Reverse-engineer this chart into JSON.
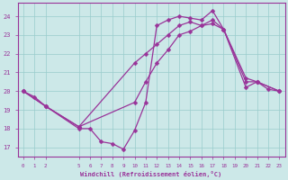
{
  "xlabel": "Windchill (Refroidissement éolien,°C)",
  "bg_color": "#cce8e8",
  "grid_color": "#99cccc",
  "line_color": "#993399",
  "xlim": [
    -0.5,
    23.5
  ],
  "ylim": [
    16.5,
    24.7
  ],
  "yticks": [
    17,
    18,
    19,
    20,
    21,
    22,
    23,
    24
  ],
  "xticks": [
    0,
    1,
    2,
    5,
    6,
    7,
    8,
    9,
    10,
    11,
    12,
    13,
    14,
    15,
    16,
    17,
    18,
    19,
    20,
    21,
    22,
    23
  ],
  "curve1_x": [
    0,
    1,
    2,
    5,
    6,
    7,
    8,
    9,
    10,
    11,
    12,
    13,
    14,
    15,
    16,
    17,
    18,
    20,
    21,
    22,
    23
  ],
  "curve1_y": [
    20.0,
    19.7,
    19.2,
    18.0,
    18.0,
    17.3,
    17.2,
    16.9,
    17.9,
    19.4,
    23.5,
    23.8,
    24.0,
    23.9,
    23.8,
    24.3,
    23.3,
    20.7,
    20.5,
    20.1,
    20.0
  ],
  "curve2_x": [
    0,
    2,
    5,
    10,
    11,
    12,
    13,
    14,
    15,
    16,
    17,
    18,
    20,
    21,
    23
  ],
  "curve2_y": [
    20.0,
    19.2,
    18.1,
    19.4,
    20.5,
    21.5,
    22.2,
    23.0,
    23.2,
    23.5,
    23.6,
    23.3,
    20.2,
    20.5,
    20.0
  ],
  "curve3_x": [
    0,
    2,
    5,
    10,
    11,
    12,
    13,
    14,
    15,
    16,
    17,
    18,
    20,
    21,
    23
  ],
  "curve3_y": [
    20.0,
    19.2,
    18.1,
    21.5,
    22.0,
    22.5,
    23.0,
    23.5,
    23.7,
    23.5,
    23.8,
    23.3,
    20.5,
    20.5,
    20.0
  ]
}
